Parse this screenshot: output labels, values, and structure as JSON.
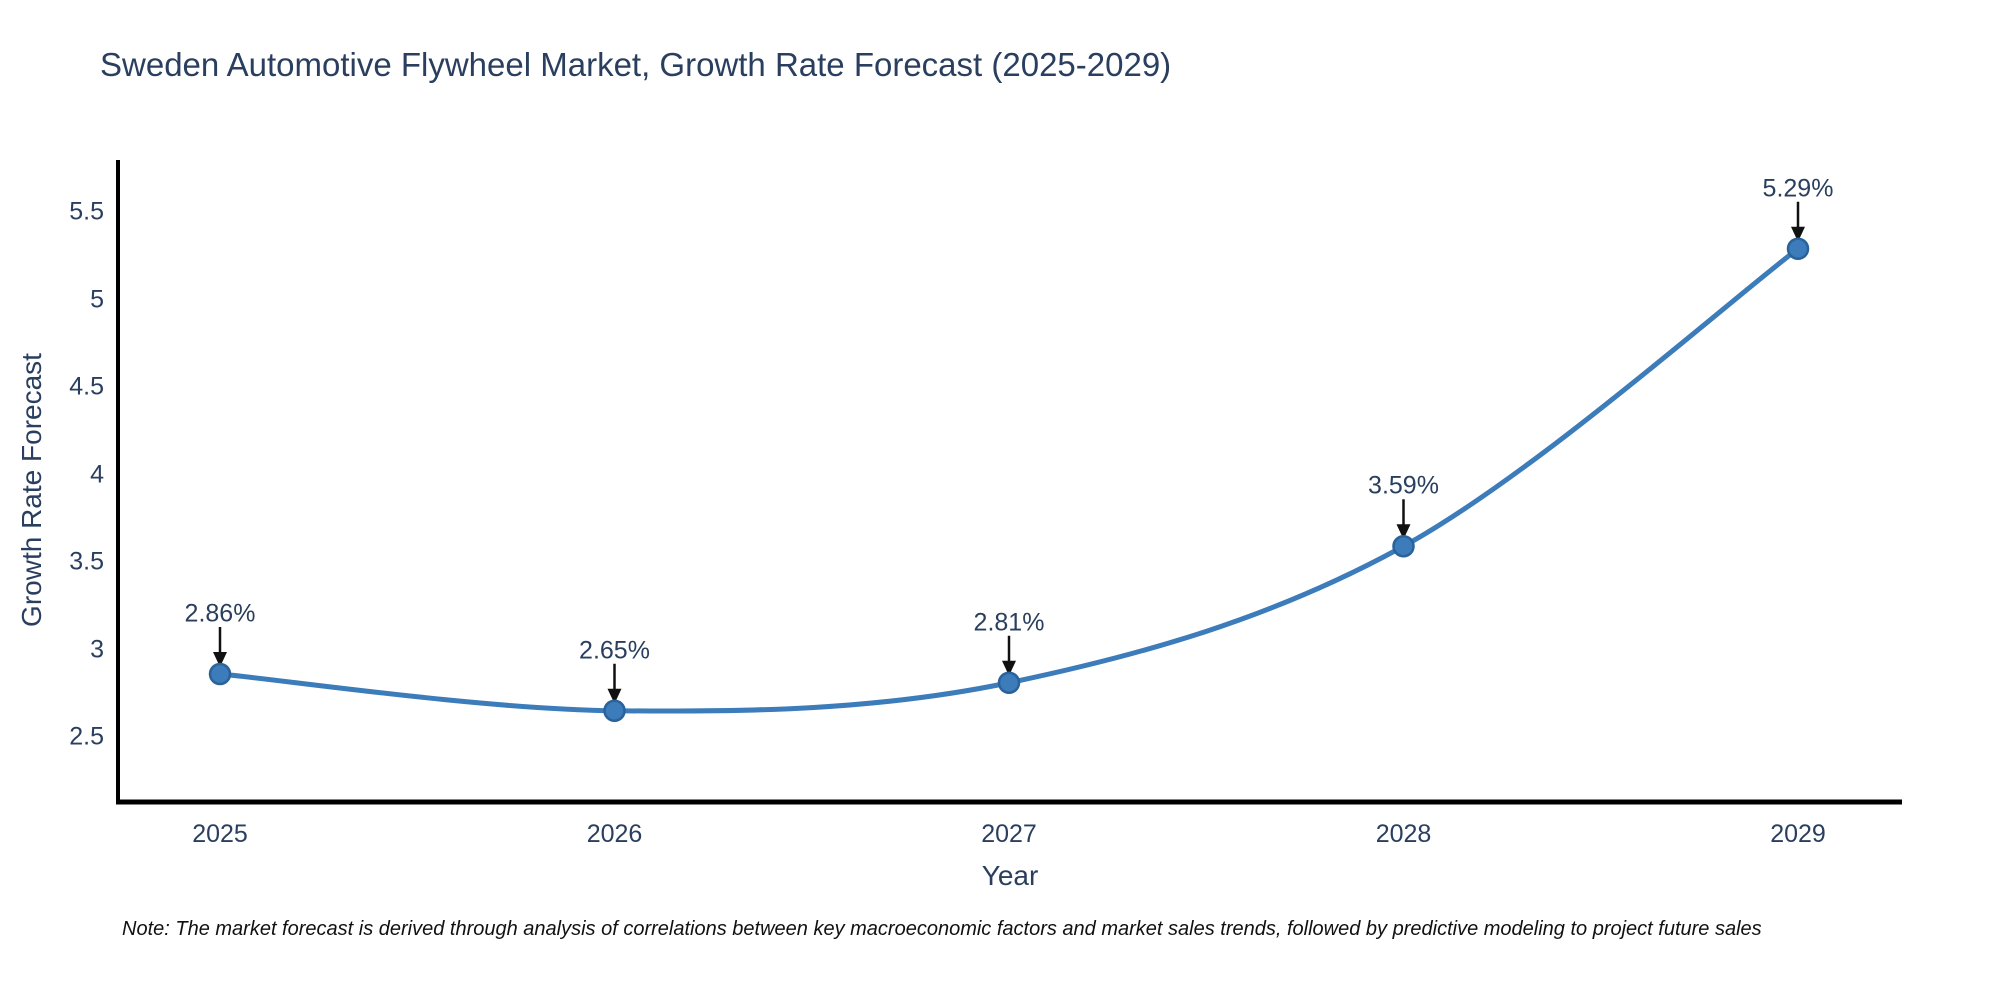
{
  "title": "Sweden Automotive Flywheel Market, Growth Rate Forecast (2025-2029)",
  "note": "Note: The market forecast is derived through analysis of correlations between key macroeconomic factors and market sales trends, followed by predictive modeling to project future sales",
  "chart_data": {
    "type": "line",
    "title": "Sweden Automotive Flywheel Market, Growth Rate Forecast (2025-2029)",
    "xlabel": "Year",
    "ylabel": "Growth Rate Forecast",
    "x": [
      2025,
      2026,
      2027,
      2028,
      2029
    ],
    "y": [
      2.86,
      2.65,
      2.81,
      3.59,
      5.29
    ],
    "point_labels": [
      "2.86%",
      "2.65%",
      "2.81%",
      "3.59%",
      "5.29%"
    ],
    "xticklabels": [
      "2025",
      "2026",
      "2027",
      "2028",
      "2029"
    ],
    "yticks": [
      2.5,
      3,
      3.5,
      4,
      4.5,
      5,
      5.5
    ],
    "ylim": [
      2.13,
      5.8
    ],
    "line_shape": "spline",
    "grid": false,
    "legend": "none",
    "annotations": "down-arrows from labels to markers",
    "colors": {
      "line": "#3C7CBA",
      "marker_fill": "#3C7CBA",
      "marker_edge": "#2A629A",
      "arrow": "#111111",
      "axis_line": "#000000",
      "text": "#2a3f5f",
      "note_text": "#111111",
      "background": "#ffffff"
    }
  }
}
